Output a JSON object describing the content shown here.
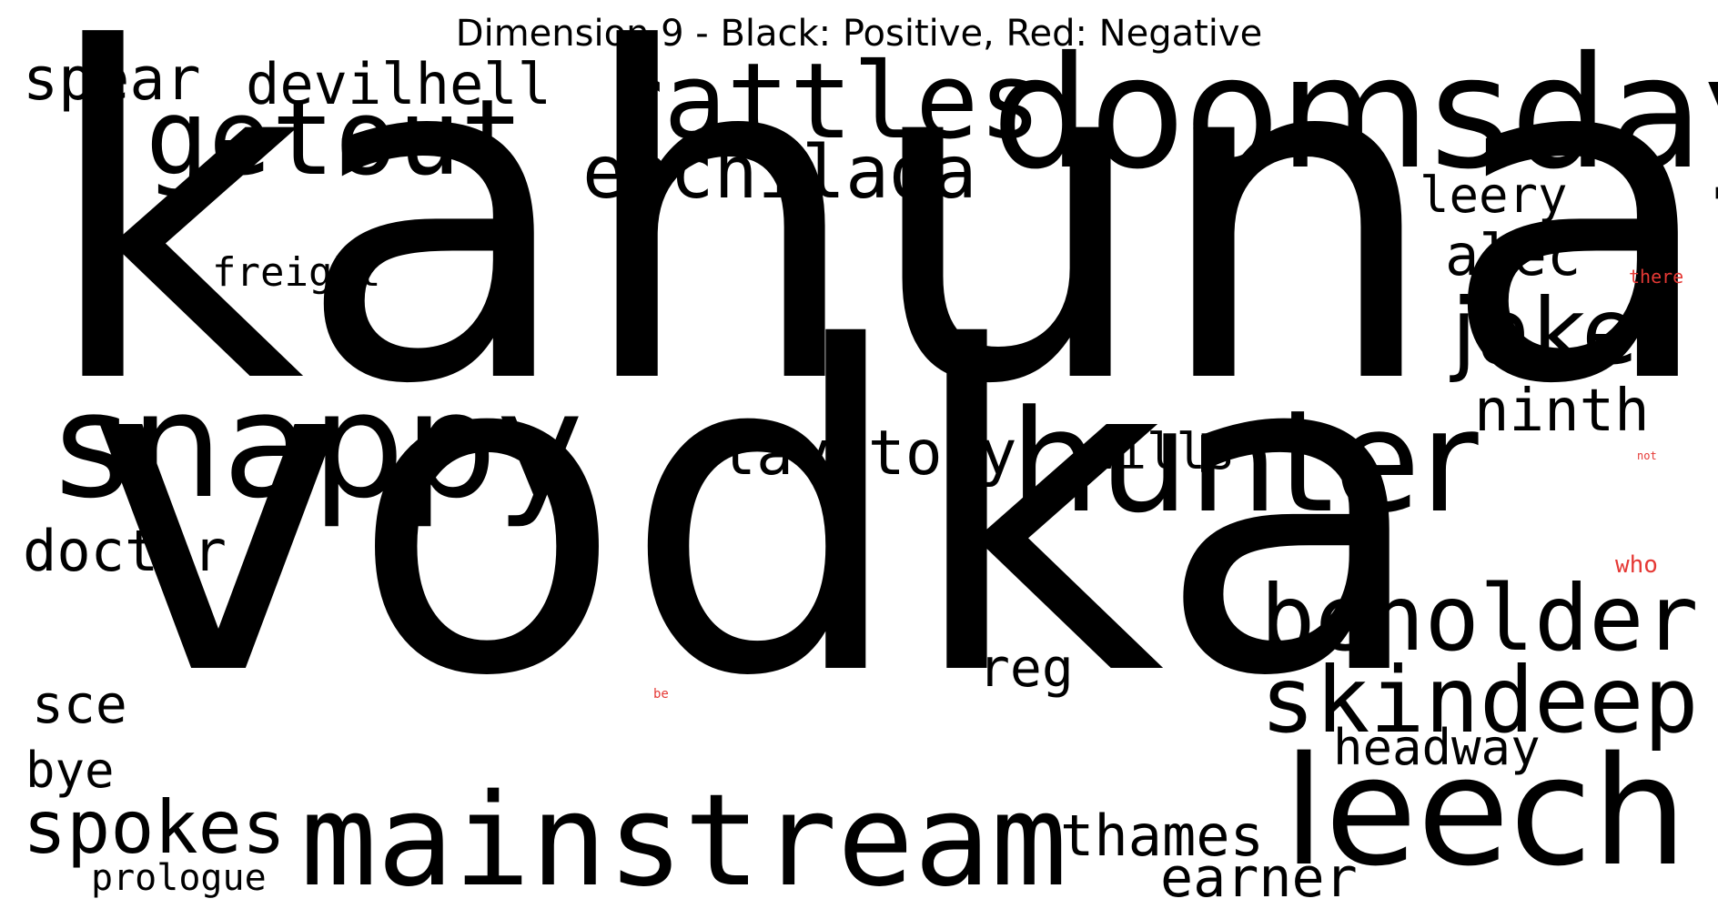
{
  "title": "Dimension 9 - Black: Positive, Red: Negative",
  "colors": {
    "positive": "#000000",
    "negative": "#e53935",
    "background": "#ffffff"
  },
  "words": [
    {
      "id": "kahuna",
      "text": "kahuna",
      "sentiment": "positive"
    },
    {
      "id": "vodka",
      "text": "vodka",
      "sentiment": "positive"
    },
    {
      "id": "doomsday",
      "text": "doomsday",
      "sentiment": "positive"
    },
    {
      "id": "snappy",
      "text": "snappy",
      "sentiment": "positive"
    },
    {
      "id": "hunter",
      "text": "hunter",
      "sentiment": "positive"
    },
    {
      "id": "mainstream",
      "text": "mainstream",
      "sentiment": "positive"
    },
    {
      "id": "leech",
      "text": "leech",
      "sentiment": "positive"
    },
    {
      "id": "getout",
      "text": "getout",
      "sentiment": "positive"
    },
    {
      "id": "rattles",
      "text": "rattles",
      "sentiment": "positive"
    },
    {
      "id": "enchilada",
      "text": "enchilada",
      "sentiment": "positive"
    },
    {
      "id": "beholder",
      "text": "beholder",
      "sentiment": "positive"
    },
    {
      "id": "skindeep",
      "text": "skindeep",
      "sentiment": "positive"
    },
    {
      "id": "jake",
      "text": "jake",
      "sentiment": "positive"
    },
    {
      "id": "lavatory",
      "text": "lavatory",
      "sentiment": "positive"
    },
    {
      "id": "spokes",
      "text": "spokes",
      "sentiment": "positive"
    },
    {
      "id": "doctor",
      "text": "doctor",
      "sentiment": "positive"
    },
    {
      "id": "spear",
      "text": "spear",
      "sentiment": "positive"
    },
    {
      "id": "devilhell",
      "text": "devilhell",
      "sentiment": "positive"
    },
    {
      "id": "ninth",
      "text": "ninth",
      "sentiment": "positive"
    },
    {
      "id": "thames",
      "text": "thames",
      "sentiment": "positive"
    },
    {
      "id": "earner",
      "text": "earner",
      "sentiment": "positive"
    },
    {
      "id": "alec",
      "text": "alec",
      "sentiment": "positive"
    },
    {
      "id": "headway",
      "text": "headway",
      "sentiment": "positive"
    },
    {
      "id": "wills",
      "text": "wills",
      "sentiment": "positive"
    },
    {
      "id": "leery",
      "text": "leery",
      "sentiment": "positive"
    },
    {
      "id": "sce",
      "text": "sce",
      "sentiment": "positive"
    },
    {
      "id": "reg",
      "text": "reg",
      "sentiment": "positive"
    },
    {
      "id": "bye",
      "text": "bye",
      "sentiment": "positive"
    },
    {
      "id": "freight",
      "text": "freight",
      "sentiment": "positive"
    },
    {
      "id": "prologue",
      "text": "prologue",
      "sentiment": "positive"
    },
    {
      "id": "there",
      "text": "there",
      "sentiment": "negative"
    },
    {
      "id": "who",
      "text": "who",
      "sentiment": "negative"
    },
    {
      "id": "not",
      "text": "not",
      "sentiment": "negative"
    },
    {
      "id": "be",
      "text": "be",
      "sentiment": "negative"
    }
  ]
}
